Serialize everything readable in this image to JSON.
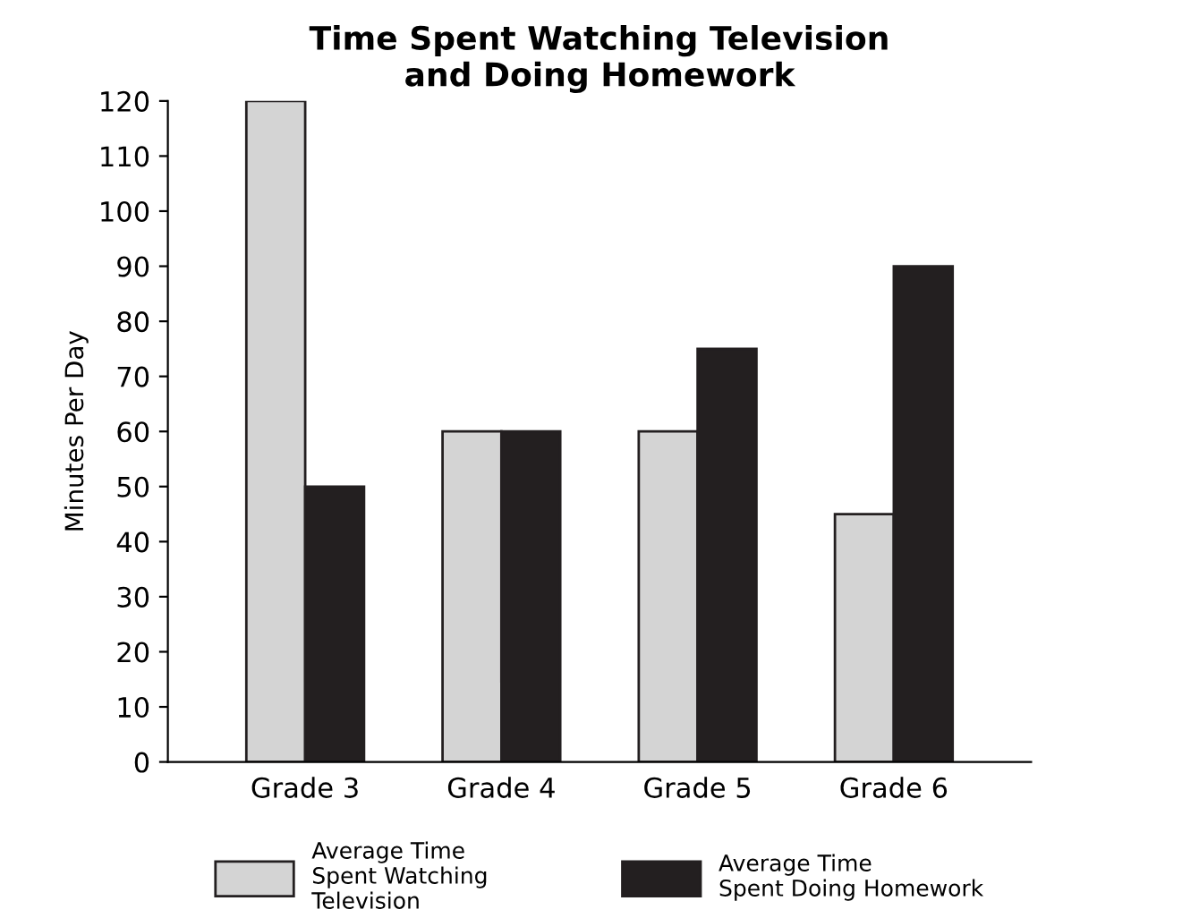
{
  "chart_data": {
    "type": "bar",
    "title": "Time Spent Watching Television\nand Doing Homework",
    "ylabel": "Minutes Per Day",
    "categories": [
      "Grade 3",
      "Grade 4",
      "Grade 5",
      "Grade 6"
    ],
    "series": [
      {
        "name": "Average Time\nSpent Watching\nTelevision",
        "color": "#d4d4d4",
        "values": [
          120,
          60,
          60,
          45
        ]
      },
      {
        "name": "Average Time\nSpent Doing Homework",
        "color": "#231f20",
        "values": [
          50,
          60,
          75,
          90
        ]
      }
    ],
    "ylim": [
      0,
      120
    ],
    "yticks": [
      0,
      10,
      20,
      30,
      40,
      50,
      60,
      70,
      80,
      90,
      100,
      110,
      120
    ],
    "grid": false,
    "legend": "bottom"
  }
}
